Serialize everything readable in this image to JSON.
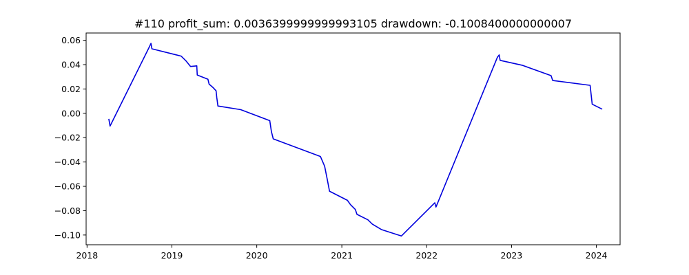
{
  "chart_data": {
    "type": "line",
    "title": "#110   profit_sum: 0.0036399999999993105 drawdown: -0.1008400000000007",
    "xlabel": "",
    "ylabel": "",
    "x_axis_type": "date",
    "xlim": [
      "2017-12-28",
      "2024-04-12"
    ],
    "ylim": [
      -0.108,
      0.066
    ],
    "x_ticks": [
      "2018-01-01",
      "2019-01-01",
      "2020-01-01",
      "2021-01-01",
      "2022-01-01",
      "2023-01-01",
      "2024-01-01"
    ],
    "x_tick_labels": [
      "2018",
      "2019",
      "2020",
      "2021",
      "2022",
      "2023",
      "2024"
    ],
    "y_ticks": [
      0.06,
      0.04,
      0.02,
      0.0,
      -0.02,
      -0.04,
      -0.06,
      -0.08,
      -0.1
    ],
    "y_tick_labels": [
      "0.06",
      "0.04",
      "0.02",
      "0.00",
      "−0.02",
      "−0.04",
      "−0.06",
      "−0.08",
      "−0.10"
    ],
    "grid": false,
    "series": [
      {
        "color": "#0000dd",
        "points": [
          [
            "2018-04-05",
            -0.005
          ],
          [
            "2018-04-10",
            -0.0105
          ],
          [
            "2018-09-27",
            0.055
          ],
          [
            "2018-10-03",
            0.0575
          ],
          [
            "2018-10-07",
            0.053
          ],
          [
            "2019-02-10",
            0.047
          ],
          [
            "2019-03-03",
            0.043
          ],
          [
            "2019-03-22",
            0.0385
          ],
          [
            "2019-04-18",
            0.039
          ],
          [
            "2019-04-20",
            0.0315
          ],
          [
            "2019-06-05",
            0.028
          ],
          [
            "2019-06-10",
            0.024
          ],
          [
            "2019-06-28",
            0.021
          ],
          [
            "2019-07-10",
            0.0185
          ],
          [
            "2019-07-13",
            0.013
          ],
          [
            "2019-07-18",
            0.006
          ],
          [
            "2019-10-24",
            0.003
          ],
          [
            "2020-02-26",
            -0.006
          ],
          [
            "2020-03-04",
            -0.015
          ],
          [
            "2020-03-12",
            -0.021
          ],
          [
            "2020-10-01",
            -0.0355
          ],
          [
            "2020-10-19",
            -0.0435
          ],
          [
            "2020-10-31",
            -0.055
          ],
          [
            "2020-11-09",
            -0.064
          ],
          [
            "2021-01-25",
            -0.0715
          ],
          [
            "2021-02-07",
            -0.075
          ],
          [
            "2021-02-28",
            -0.079
          ],
          [
            "2021-03-07",
            -0.083
          ],
          [
            "2021-04-23",
            -0.0875
          ],
          [
            "2021-05-12",
            -0.091
          ],
          [
            "2021-06-20",
            -0.0955
          ],
          [
            "2021-09-14",
            -0.1008
          ],
          [
            "2022-02-05",
            -0.0735
          ],
          [
            "2022-02-10",
            -0.077
          ],
          [
            "2022-11-01",
            0.046
          ],
          [
            "2022-11-09",
            0.048
          ],
          [
            "2022-11-13",
            0.0435
          ],
          [
            "2023-02-16",
            0.0395
          ],
          [
            "2023-06-20",
            0.031
          ],
          [
            "2023-06-27",
            0.027
          ],
          [
            "2023-12-05",
            0.023
          ],
          [
            "2023-12-14",
            0.0075
          ],
          [
            "2024-01-24",
            0.0036
          ]
        ]
      }
    ]
  }
}
